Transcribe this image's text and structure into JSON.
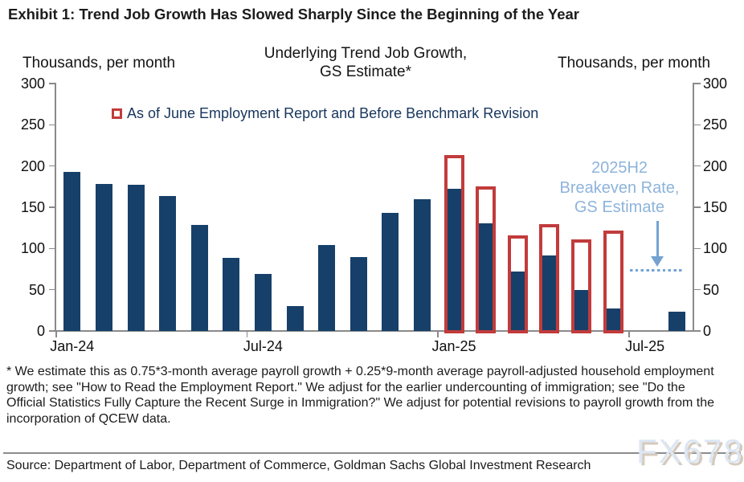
{
  "page": {
    "title": "Exhibit 1: Trend Job Growth Has Slowed Sharply Since the Beginning of the Year"
  },
  "chart": {
    "header_left": "Thousands, per month",
    "header_right": "Thousands, per month",
    "title_line1": "Underlying Trend Job Growth,",
    "title_line2": "GS Estimate*",
    "legend": {
      "label": "As of June Employment Report and Before Benchmark Revision",
      "marker_color": "#c23b3b"
    }
  },
  "chart_data": {
    "type": "bar",
    "unit": "thousands per month",
    "categories": [
      "Jan-24",
      "Feb-24",
      "Mar-24",
      "Apr-24",
      "May-24",
      "Jun-24",
      "Jul-24",
      "Aug-24",
      "Sep-24",
      "Oct-24",
      "Nov-24",
      "Dec-24",
      "Jan-25",
      "Feb-25",
      "Mar-25",
      "Apr-25",
      "May-25",
      "Jun-25",
      "Jul-25",
      "Aug-25"
    ],
    "series": [
      {
        "name": "Underlying Trend Job Growth, GS Estimate (current, after benchmark revision)",
        "style": "solid",
        "color": "#164069",
        "values": [
          193,
          178,
          177,
          164,
          129,
          89,
          69,
          30,
          104,
          90,
          143,
          160,
          172,
          131,
          72,
          92,
          50,
          27,
          null,
          23
        ]
      },
      {
        "name": "As of June Employment Report and Before Benchmark Revision",
        "style": "outline",
        "color": "#c23b3b",
        "values": [
          null,
          null,
          null,
          null,
          null,
          null,
          null,
          null,
          null,
          null,
          null,
          null,
          213,
          175,
          116,
          130,
          111,
          122,
          null,
          null
        ]
      }
    ],
    "ylim": [
      0,
      300
    ],
    "yticks": [
      0,
      50,
      100,
      150,
      200,
      250,
      300
    ],
    "xticks": [
      {
        "index": 0,
        "label": "Jan-24"
      },
      {
        "index": 6,
        "label": "Jul-24"
      },
      {
        "index": 12,
        "label": "Jan-25"
      },
      {
        "index": 18,
        "label": "Jul-25"
      }
    ],
    "grid": false,
    "legend_position": "top-center",
    "breakeven_line": {
      "value": 72,
      "label": "2025H2 Breakeven Rate, GS Estimate"
    }
  },
  "annotation": {
    "line1": "2025H2",
    "line2": "Breakeven Rate,",
    "line3": "GS Estimate"
  },
  "colors": {
    "bar_blue": "#164069",
    "outline_red": "#c23b3b",
    "annotation_blue": "#8db4db",
    "arrow_blue": "#74a3d2",
    "axis_gray": "#8a8a8a"
  },
  "footnote": "* We estimate this as 0.75*3-month average payroll growth + 0.25*9-month average payroll-adjusted household employment growth; see \"How to Read the Employment Report.\" We adjust for the earlier undercounting of immigration; see \"Do the Official Statistics Fully Capture the Recent Surge in Immigration?\" We adjust for potential revisions to payroll growth from the incorporation of QCEW data.",
  "source": "Source: Department of Labor, Department of Commerce, Goldman Sachs Global Investment Research",
  "watermark": "FX678"
}
